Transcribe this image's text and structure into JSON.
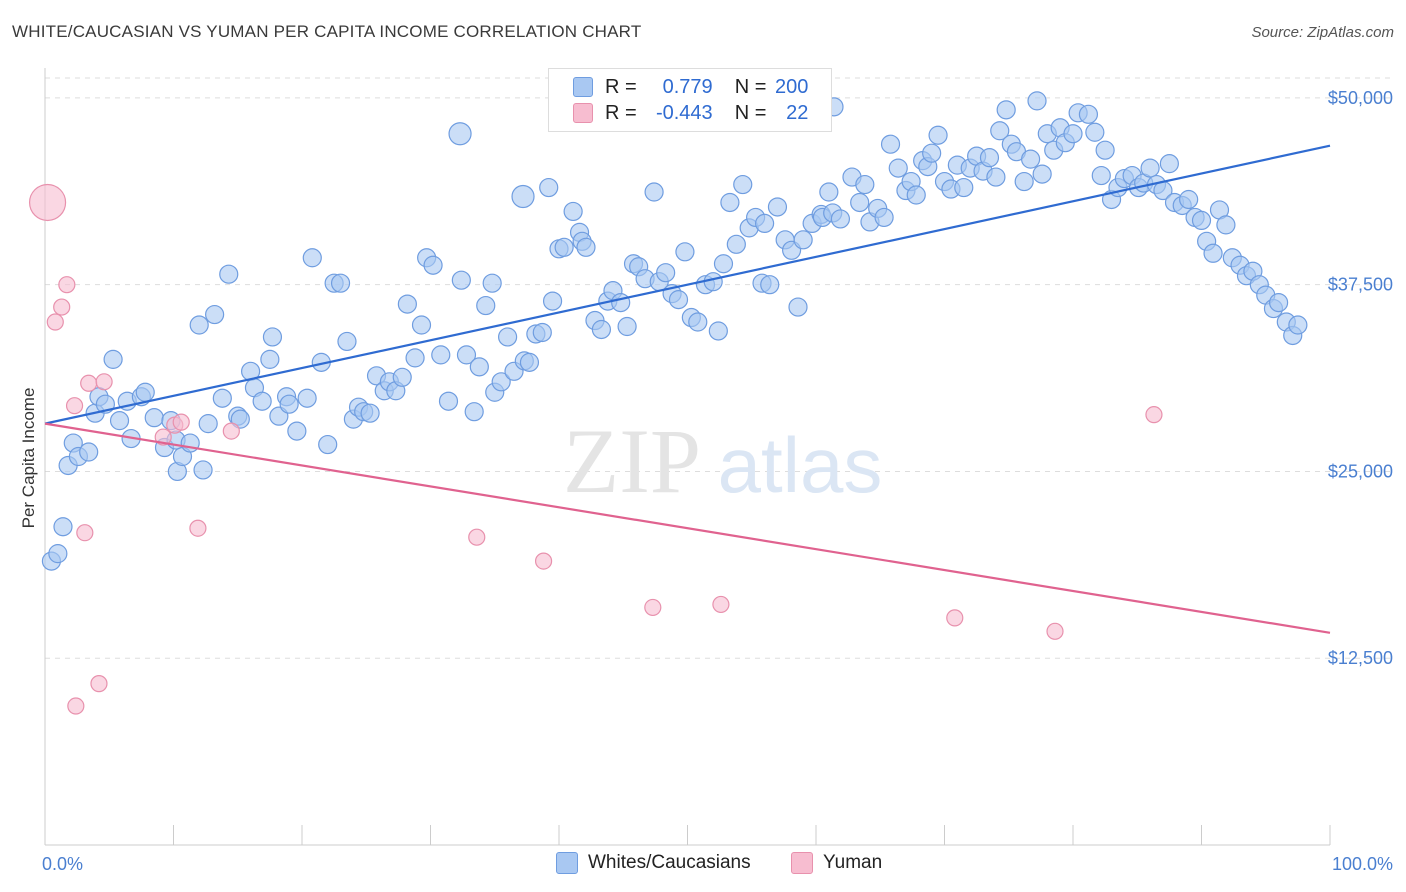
{
  "header": {
    "title": "WHITE/CAUCASIAN VS YUMAN PER CAPITA INCOME CORRELATION CHART",
    "source": "Source: ZipAtlas.com"
  },
  "legend_top": {
    "rows": [
      {
        "r_label": "R =",
        "r_value": "0.779",
        "n_label": "N =",
        "n_value": "200"
      },
      {
        "r_label": "R =",
        "r_value": "-0.443",
        "n_label": "N =",
        "n_value": "22"
      }
    ]
  },
  "colors": {
    "blue_fill": "#a9c8f2",
    "blue_stroke": "#6f9de0",
    "blue_line": "#2f6bd1",
    "pink_fill": "#f7bdd0",
    "pink_stroke": "#e891ad",
    "pink_line": "#e0628f",
    "grid": "#dddddd",
    "tick_text": "#4a7fd0"
  },
  "watermark": {
    "part1": "ZIP",
    "part2": "atlas"
  },
  "chart_data": {
    "type": "scatter",
    "title": "WHITE/CAUCASIAN VS YUMAN PER CAPITA INCOME CORRELATION CHART",
    "ylabel": "Per Capita Income",
    "xlabel": "",
    "xlim": [
      0,
      100
    ],
    "ylim": [
      0,
      52000
    ],
    "x_tick_labels": [
      "0.0%",
      "100.0%"
    ],
    "y_ticks": [
      12500,
      25000,
      37500,
      50000
    ],
    "y_tick_labels": [
      "$12,500",
      "$25,000",
      "$37,500",
      "$50,000"
    ],
    "grid": true,
    "legend_placement": "top-center and bottom",
    "series": [
      {
        "name": "Whites/Caucasians",
        "r": 0.779,
        "n": 200,
        "trend": {
          "x": [
            0,
            100
          ],
          "y": [
            28200,
            46800
          ]
        },
        "points": [
          [
            0.5,
            19000
          ],
          [
            1,
            19500
          ],
          [
            1.4,
            21300
          ],
          [
            1.8,
            25400
          ],
          [
            2.2,
            26900
          ],
          [
            2.6,
            26000
          ],
          [
            3.4,
            26300
          ],
          [
            3.9,
            28900
          ],
          [
            4.2,
            30000
          ],
          [
            4.7,
            29500
          ],
          [
            5.3,
            32500
          ],
          [
            5.8,
            28400
          ],
          [
            6.7,
            27200
          ],
          [
            6.4,
            29700
          ],
          [
            7.5,
            30000
          ],
          [
            7.8,
            30300
          ],
          [
            8.5,
            28600
          ],
          [
            9.3,
            26600
          ],
          [
            9.8,
            28400
          ],
          [
            10.2,
            27100
          ],
          [
            10.3,
            25000
          ],
          [
            10.7,
            26000
          ],
          [
            11.3,
            26900
          ],
          [
            12.3,
            25100
          ],
          [
            12,
            34800
          ],
          [
            12.7,
            28200
          ],
          [
            13.2,
            35500
          ],
          [
            13.8,
            29900
          ],
          [
            14.3,
            38200
          ],
          [
            15,
            28700
          ],
          [
            15.2,
            28500
          ],
          [
            16,
            31700
          ],
          [
            16.3,
            30600
          ],
          [
            16.9,
            29700
          ],
          [
            17.5,
            32500
          ],
          [
            17.7,
            34000
          ],
          [
            18.2,
            28700
          ],
          [
            18.8,
            30000
          ],
          [
            19,
            29500
          ],
          [
            19.6,
            27700
          ],
          [
            20.4,
            29900
          ],
          [
            20.8,
            39300
          ],
          [
            21.5,
            32300
          ],
          [
            22,
            26800
          ],
          [
            22.5,
            37600
          ],
          [
            23,
            37600
          ],
          [
            23.5,
            33700
          ],
          [
            24,
            28500
          ],
          [
            24.4,
            29300
          ],
          [
            24.8,
            29000
          ],
          [
            25.3,
            28900
          ],
          [
            25.8,
            31400
          ],
          [
            26.4,
            30400
          ],
          [
            26.8,
            31000
          ],
          [
            27.3,
            30400
          ],
          [
            27.8,
            31300
          ],
          [
            28.2,
            36200
          ],
          [
            28.8,
            32600
          ],
          [
            29.3,
            34800
          ],
          [
            29.7,
            39300
          ],
          [
            30.2,
            38800
          ],
          [
            30.8,
            32800
          ],
          [
            31.4,
            29700
          ],
          [
            32.3,
            47600
          ],
          [
            32.4,
            37800
          ],
          [
            32.8,
            32800
          ],
          [
            33.4,
            29000
          ],
          [
            33.8,
            32000
          ],
          [
            34.3,
            36100
          ],
          [
            34.8,
            37600
          ],
          [
            35,
            30300
          ],
          [
            35.5,
            31000
          ],
          [
            36,
            34000
          ],
          [
            36.5,
            31700
          ],
          [
            37.3,
            32400
          ],
          [
            37.7,
            32300
          ],
          [
            38.2,
            34200
          ],
          [
            38.7,
            34300
          ],
          [
            37.2,
            43400
          ],
          [
            39.2,
            44000
          ],
          [
            39.5,
            36400
          ],
          [
            40,
            39900
          ],
          [
            40.4,
            40000
          ],
          [
            41.1,
            42400
          ],
          [
            41.6,
            41000
          ],
          [
            41.8,
            40400
          ],
          [
            42.1,
            40000
          ],
          [
            42.8,
            35100
          ],
          [
            43.3,
            34500
          ],
          [
            43.8,
            36400
          ],
          [
            44.2,
            37100
          ],
          [
            44.8,
            36300
          ],
          [
            45.3,
            34700
          ],
          [
            45.8,
            38900
          ],
          [
            46.2,
            38700
          ],
          [
            46.7,
            37900
          ],
          [
            47.4,
            43700
          ],
          [
            47.8,
            37700
          ],
          [
            48.3,
            38300
          ],
          [
            48.8,
            36900
          ],
          [
            49.3,
            36500
          ],
          [
            49.8,
            39700
          ],
          [
            50.3,
            35300
          ],
          [
            50.8,
            35000
          ],
          [
            51.4,
            37500
          ],
          [
            52,
            37700
          ],
          [
            52.4,
            34400
          ],
          [
            52.8,
            38900
          ],
          [
            53.3,
            43000
          ],
          [
            53.8,
            40200
          ],
          [
            54.3,
            44200
          ],
          [
            54.8,
            41300
          ],
          [
            55.3,
            42000
          ],
          [
            55.8,
            37600
          ],
          [
            56,
            41600
          ],
          [
            56.4,
            37500
          ],
          [
            57,
            42700
          ],
          [
            57.6,
            40500
          ],
          [
            58.1,
            39800
          ],
          [
            58.6,
            36000
          ],
          [
            59,
            40500
          ],
          [
            59.7,
            41600
          ],
          [
            60.4,
            42200
          ],
          [
            60.5,
            42000
          ],
          [
            61,
            43700
          ],
          [
            61.3,
            42300
          ],
          [
            61.9,
            41900
          ],
          [
            61.4,
            49400
          ],
          [
            62.8,
            44700
          ],
          [
            63.4,
            43000
          ],
          [
            63.8,
            44200
          ],
          [
            64.2,
            41700
          ],
          [
            64.8,
            42600
          ],
          [
            65.3,
            42000
          ],
          [
            65.8,
            46900
          ],
          [
            66.4,
            45300
          ],
          [
            67,
            43800
          ],
          [
            67.4,
            44400
          ],
          [
            67.8,
            43500
          ],
          [
            68.3,
            45800
          ],
          [
            68.7,
            45400
          ],
          [
            69,
            46300
          ],
          [
            69.5,
            47500
          ],
          [
            70,
            44400
          ],
          [
            70.5,
            43900
          ],
          [
            71,
            45500
          ],
          [
            71.5,
            44000
          ],
          [
            72,
            45300
          ],
          [
            72.5,
            46100
          ],
          [
            73,
            45100
          ],
          [
            73.5,
            46000
          ],
          [
            74,
            44700
          ],
          [
            74.3,
            47800
          ],
          [
            74.8,
            49200
          ],
          [
            75.2,
            46900
          ],
          [
            75.6,
            46400
          ],
          [
            76.2,
            44400
          ],
          [
            76.7,
            45900
          ],
          [
            77.2,
            49800
          ],
          [
            77.6,
            44900
          ],
          [
            78,
            47600
          ],
          [
            78.5,
            46500
          ],
          [
            79,
            48000
          ],
          [
            79.4,
            47000
          ],
          [
            80,
            47600
          ],
          [
            80.4,
            49000
          ],
          [
            81.2,
            48900
          ],
          [
            81.7,
            47700
          ],
          [
            82.2,
            44800
          ],
          [
            82.5,
            46500
          ],
          [
            83,
            43200
          ],
          [
            83.5,
            44000
          ],
          [
            84,
            44600
          ],
          [
            84.6,
            44800
          ],
          [
            85.1,
            44000
          ],
          [
            85.5,
            44300
          ],
          [
            86,
            45300
          ],
          [
            86.5,
            44200
          ],
          [
            87,
            43800
          ],
          [
            87.5,
            45600
          ],
          [
            87.9,
            43000
          ],
          [
            88.5,
            42800
          ],
          [
            89,
            43200
          ],
          [
            89.5,
            42000
          ],
          [
            90,
            41800
          ],
          [
            90.4,
            40400
          ],
          [
            90.9,
            39600
          ],
          [
            91.4,
            42500
          ],
          [
            91.9,
            41500
          ],
          [
            92.4,
            39300
          ],
          [
            93,
            38800
          ],
          [
            93.5,
            38100
          ],
          [
            94,
            38400
          ],
          [
            94.5,
            37500
          ],
          [
            95,
            36800
          ],
          [
            95.6,
            35900
          ],
          [
            96,
            36300
          ],
          [
            96.6,
            35000
          ],
          [
            97.1,
            34100
          ],
          [
            97.5,
            34800
          ]
        ]
      },
      {
        "name": "Yuman",
        "r": -0.443,
        "n": 22,
        "trend": {
          "x": [
            0,
            100
          ],
          "y": [
            28200,
            14200
          ]
        },
        "points": [
          [
            0.2,
            43000
          ],
          [
            0.8,
            35000
          ],
          [
            1.3,
            36000
          ],
          [
            1.7,
            37500
          ],
          [
            2.3,
            29400
          ],
          [
            2.4,
            9300
          ],
          [
            3.1,
            20900
          ],
          [
            3.4,
            30900
          ],
          [
            4.2,
            10800
          ],
          [
            4.6,
            31000
          ],
          [
            9.2,
            27300
          ],
          [
            10.1,
            28100
          ],
          [
            10.6,
            28300
          ],
          [
            11.9,
            21200
          ],
          [
            14.5,
            27700
          ],
          [
            33.6,
            20600
          ],
          [
            38.8,
            19000
          ],
          [
            47.3,
            15900
          ],
          [
            52.6,
            16100
          ],
          [
            70.8,
            15200
          ],
          [
            78.6,
            14300
          ],
          [
            86.3,
            28800
          ]
        ]
      }
    ]
  },
  "bottom_legend": {
    "items": [
      {
        "label": "Whites/Caucasians"
      },
      {
        "label": "Yuman"
      }
    ]
  }
}
